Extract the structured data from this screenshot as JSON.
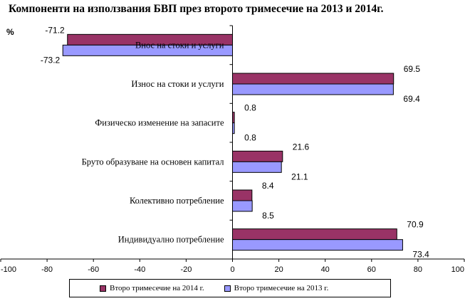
{
  "chart_data": {
    "type": "bar",
    "orientation": "horizontal",
    "title": "Компоненти на използвания БВП през второто тримесечие на 2013 и 2014г.",
    "unit_label": "%",
    "categories": [
      "Внос на стоки и услуги",
      "Износ на стоки и услуги",
      "Физическо изменение на запасите",
      "Бруто образуване на основен капитал",
      "Колективно потребление",
      "Индивидуално потребление"
    ],
    "series": [
      {
        "name": "Второ тримесечие на 2014 г.",
        "color": "#993366",
        "values": [
          -71.2,
          69.5,
          0.8,
          21.6,
          8.4,
          70.9
        ]
      },
      {
        "name": "Второ тримесечие на 2013 г.",
        "color": "#9999ff",
        "values": [
          -73.2,
          69.4,
          0.8,
          21.1,
          8.5,
          73.4
        ]
      }
    ],
    "xlim": [
      -100,
      100
    ],
    "xticks": [
      -100,
      -80,
      -60,
      -40,
      -20,
      0,
      20,
      40,
      60,
      80,
      100
    ],
    "grid": false,
    "legend_position": "bottom"
  }
}
